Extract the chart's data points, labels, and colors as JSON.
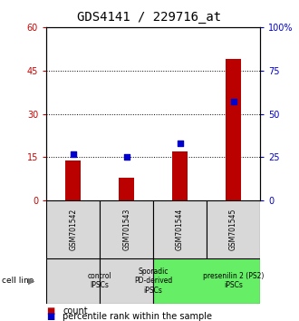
{
  "title": "GDS4141 / 229716_at",
  "samples": [
    "GSM701542",
    "GSM701543",
    "GSM701544",
    "GSM701545"
  ],
  "counts": [
    14,
    8,
    17,
    49
  ],
  "percentiles": [
    27,
    25,
    33,
    57
  ],
  "ylim_left": [
    0,
    60
  ],
  "ylim_right": [
    0,
    100
  ],
  "yticks_left": [
    0,
    15,
    30,
    45,
    60
  ],
  "yticks_right": [
    0,
    25,
    50,
    75,
    100
  ],
  "ytick_labels_right": [
    "0",
    "25",
    "50",
    "75",
    "100%"
  ],
  "bar_color": "#bb0000",
  "dot_color": "#0000cc",
  "groups": [
    {
      "label": "control\nIPSCs",
      "start": 0,
      "end": 1,
      "color": "#d8d8d8"
    },
    {
      "label": "Sporadic\nPD-derived\niPSCs",
      "start": 1,
      "end": 2,
      "color": "#d8d8d8"
    },
    {
      "label": "presenilin 2 (PS2)\niPSCs",
      "start": 2,
      "end": 4,
      "color": "#66ee66"
    }
  ],
  "cell_line_label": "cell line",
  "legend_count_label": "count",
  "legend_pct_label": "percentile rank within the sample",
  "tick_color_left": "#cc0000",
  "tick_color_right": "#0000cc",
  "title_fontsize": 10,
  "axis_fontsize": 7,
  "label_fontsize": 7,
  "legend_fontsize": 7
}
